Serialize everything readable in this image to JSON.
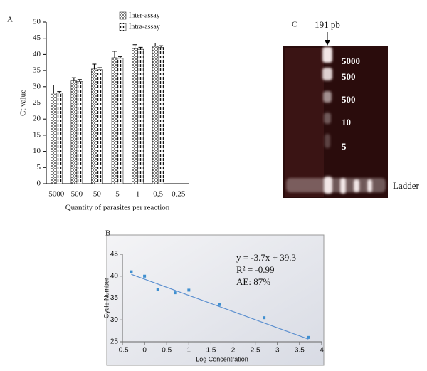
{
  "chart_data": [
    {
      "type": "bar",
      "label": "A",
      "y_label": "Ct value",
      "x_label": "Quantity of parasites per reaction",
      "categories": [
        "5000",
        "500",
        "50",
        "5",
        "1",
        "0,5",
        "0,25"
      ],
      "series": [
        {
          "name": "Inter-assay",
          "values": [
            28,
            31.8,
            35.5,
            39,
            41.8,
            42.5,
            null
          ],
          "errors": [
            2.5,
            1,
            1.5,
            2,
            1.2,
            1,
            null
          ]
        },
        {
          "name": "Intra-assay",
          "values": [
            28,
            31.6,
            35.3,
            38.8,
            41.6,
            42.2,
            null
          ],
          "errors": [
            0.5,
            0.6,
            0.6,
            0.5,
            0.6,
            0.5,
            null
          ]
        }
      ],
      "ylim": [
        0,
        50
      ],
      "yticks": [
        0,
        5,
        10,
        15,
        20,
        25,
        30,
        35,
        40,
        45,
        50
      ],
      "legend": "top-right"
    },
    {
      "type": "scatter",
      "label": "B",
      "y_label": "Cycle Number",
      "x_label": "Log Concentration",
      "x": [
        -0.3,
        0,
        0.3,
        0.7,
        1,
        1.7,
        2.7,
        3.7
      ],
      "values": [
        41,
        40,
        37,
        36.2,
        36.8,
        33.5,
        30.5,
        26
      ],
      "color": "#3f8fd0",
      "trendline": {
        "slope": -3.7,
        "intercept": 39.3,
        "color": "#5b8fcf"
      },
      "annotations": [
        "y = -3.7x + 39.3",
        "R² = -0.99",
        "AE: 87%"
      ],
      "xlim": [
        -0.5,
        4
      ],
      "xticks": [
        -0.5,
        0,
        0.5,
        1,
        1.5,
        2,
        2.5,
        3,
        3.5,
        4
      ],
      "ylim": [
        25,
        45
      ],
      "yticks": [
        25,
        30,
        35,
        40,
        45
      ]
    }
  ],
  "gel": {
    "label": "C",
    "marker": "191 pb",
    "bands": [
      "5000",
      "500",
      "500",
      "10",
      "5"
    ],
    "ladder": "Ladder"
  }
}
